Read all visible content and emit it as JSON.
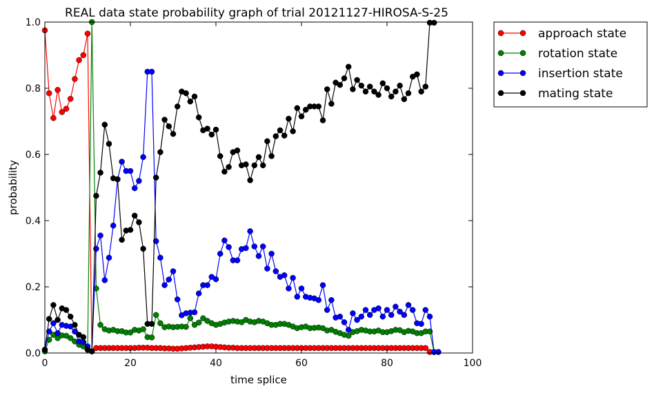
{
  "chart_data": {
    "type": "line",
    "title": "REAL data state probability graph of trial 20121127-HIROSA-S-25",
    "xlabel": "time splice",
    "ylabel": "probability",
    "xlim": [
      0,
      100
    ],
    "ylim": [
      0.0,
      1.0
    ],
    "xticks": [
      "0",
      "20",
      "40",
      "60",
      "80",
      "100"
    ],
    "yticks": [
      "0.0",
      "0.2",
      "0.4",
      "0.6",
      "0.8",
      "1.0"
    ],
    "grid": false,
    "legend_position": "outside-right-top",
    "series": [
      {
        "name": "approach state",
        "color": "#ff0000",
        "values": [
          0.975,
          0.785,
          0.71,
          0.795,
          0.728,
          0.738,
          0.768,
          0.828,
          0.885,
          0.9,
          0.965,
          0.005,
          0.015,
          0.015,
          0.015,
          0.015,
          0.015,
          0.015,
          0.015,
          0.015,
          0.015,
          0.015,
          0.016,
          0.016,
          0.016,
          0.015,
          0.015,
          0.015,
          0.014,
          0.014,
          0.013,
          0.013,
          0.014,
          0.015,
          0.016,
          0.017,
          0.018,
          0.019,
          0.02,
          0.02,
          0.019,
          0.018,
          0.017,
          0.016,
          0.016,
          0.015,
          0.015,
          0.015,
          0.015,
          0.015,
          0.015,
          0.015,
          0.015,
          0.015,
          0.015,
          0.015,
          0.015,
          0.015,
          0.015,
          0.015,
          0.015,
          0.015,
          0.015,
          0.015,
          0.015,
          0.015,
          0.015,
          0.015,
          0.015,
          0.015,
          0.015,
          0.015,
          0.015,
          0.015,
          0.015,
          0.015,
          0.015,
          0.015,
          0.015,
          0.015,
          0.015,
          0.015,
          0.015,
          0.015,
          0.015,
          0.015,
          0.015,
          0.015,
          0.015,
          0.015,
          0.003,
          0.003
        ]
      },
      {
        "name": "rotation state",
        "color": "#008000",
        "values": [
          0.005,
          0.04,
          0.055,
          0.045,
          0.053,
          0.052,
          0.045,
          0.035,
          0.025,
          0.02,
          0.01,
          1.0,
          0.195,
          0.085,
          0.072,
          0.068,
          0.07,
          0.066,
          0.066,
          0.062,
          0.062,
          0.07,
          0.068,
          0.072,
          0.048,
          0.047,
          0.115,
          0.09,
          0.078,
          0.08,
          0.078,
          0.079,
          0.08,
          0.079,
          0.105,
          0.085,
          0.092,
          0.105,
          0.097,
          0.09,
          0.085,
          0.088,
          0.092,
          0.095,
          0.097,
          0.095,
          0.093,
          0.1,
          0.095,
          0.093,
          0.097,
          0.095,
          0.09,
          0.085,
          0.085,
          0.088,
          0.088,
          0.085,
          0.08,
          0.075,
          0.078,
          0.08,
          0.075,
          0.076,
          0.077,
          0.075,
          0.068,
          0.07,
          0.064,
          0.06,
          0.055,
          0.052,
          0.063,
          0.066,
          0.07,
          0.068,
          0.065,
          0.065,
          0.068,
          0.063,
          0.063,
          0.066,
          0.07,
          0.069,
          0.063,
          0.067,
          0.065,
          0.06,
          0.06,
          0.065,
          0.065,
          0.003,
          0.003
        ]
      },
      {
        "name": "insertion state",
        "color": "#0000ff",
        "values": [
          0.01,
          0.065,
          0.09,
          0.06,
          0.085,
          0.082,
          0.08,
          0.065,
          0.035,
          0.033,
          0.02,
          0.005,
          0.315,
          0.355,
          0.22,
          0.288,
          0.385,
          0.525,
          0.578,
          0.55,
          0.55,
          0.498,
          0.52,
          0.592,
          0.85,
          0.85,
          0.338,
          0.288,
          0.205,
          0.222,
          0.247,
          0.162,
          0.114,
          0.12,
          0.122,
          0.123,
          0.18,
          0.205,
          0.205,
          0.23,
          0.223,
          0.3,
          0.34,
          0.32,
          0.28,
          0.28,
          0.314,
          0.317,
          0.368,
          0.322,
          0.293,
          0.322,
          0.255,
          0.3,
          0.247,
          0.23,
          0.235,
          0.195,
          0.227,
          0.17,
          0.195,
          0.17,
          0.167,
          0.165,
          0.16,
          0.205,
          0.13,
          0.16,
          0.107,
          0.11,
          0.093,
          0.07,
          0.12,
          0.1,
          0.11,
          0.13,
          0.115,
          0.13,
          0.135,
          0.11,
          0.13,
          0.115,
          0.14,
          0.125,
          0.115,
          0.145,
          0.13,
          0.09,
          0.088,
          0.13,
          0.11,
          0.003,
          0.003
        ]
      },
      {
        "name": "mating state",
        "color": "#000000",
        "values": [
          0.01,
          0.103,
          0.145,
          0.1,
          0.135,
          0.13,
          0.11,
          0.085,
          0.055,
          0.048,
          0.01,
          0.005,
          0.475,
          0.545,
          0.69,
          0.632,
          0.528,
          0.525,
          0.342,
          0.37,
          0.372,
          0.415,
          0.395,
          0.315,
          0.088,
          0.088,
          0.53,
          0.607,
          0.705,
          0.685,
          0.662,
          0.745,
          0.79,
          0.785,
          0.76,
          0.775,
          0.712,
          0.673,
          0.678,
          0.66,
          0.675,
          0.595,
          0.548,
          0.562,
          0.607,
          0.612,
          0.567,
          0.57,
          0.522,
          0.567,
          0.592,
          0.567,
          0.64,
          0.595,
          0.655,
          0.673,
          0.657,
          0.708,
          0.67,
          0.74,
          0.715,
          0.735,
          0.745,
          0.745,
          0.745,
          0.703,
          0.797,
          0.753,
          0.817,
          0.81,
          0.83,
          0.865,
          0.797,
          0.825,
          0.808,
          0.79,
          0.805,
          0.79,
          0.78,
          0.815,
          0.8,
          0.775,
          0.79,
          0.808,
          0.767,
          0.785,
          0.835,
          0.842,
          0.79,
          0.805,
          0.998,
          0.998
        ]
      }
    ]
  }
}
